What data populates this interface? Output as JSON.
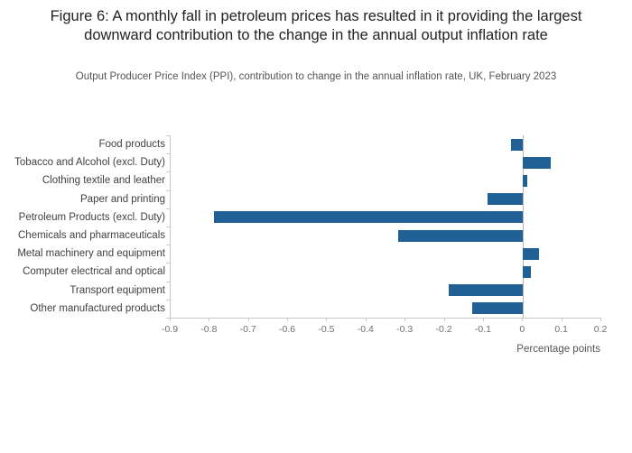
{
  "figure": {
    "title": "Figure 6: A monthly fall in petroleum prices has resulted in it providing the largest downward contribution to the change in the annual output inflation rate",
    "subtitle": "Output Producer Price Index (PPI), contribution to change in the annual inflation rate, UK, February 2023"
  },
  "chart_data": {
    "type": "bar",
    "orientation": "horizontal",
    "title": "Figure 6: A monthly fall in petroleum prices has resulted in it providing the largest downward contribution to the change in the annual output inflation rate",
    "subtitle": "Output Producer Price Index (PPI), contribution to change in the annual inflation rate, UK, February 2023",
    "categories": [
      "Food products",
      "Tobacco and Alcohol (excl. Duty)",
      "Clothing textile and leather",
      "Paper and printing",
      "Petroleum Products (excl. Duty)",
      "Chemicals and pharmaceuticals",
      "Metal machinery and equipment",
      "Computer electrical and optical",
      "Transport equipment",
      "Other manufactured products"
    ],
    "values": [
      -0.03,
      0.07,
      0.01,
      -0.09,
      -0.79,
      -0.32,
      0.04,
      0.02,
      -0.19,
      -0.13
    ],
    "xlabel": "Percentage points",
    "xlim": [
      -0.9,
      0.2
    ],
    "xticks": [
      -0.9,
      -0.8,
      -0.7,
      -0.6,
      -0.5,
      -0.4,
      -0.3,
      -0.2,
      -0.1,
      0,
      0.1,
      0.2
    ],
    "xtick_labels": [
      "-0.9",
      "-0.8",
      "-0.7",
      "-0.6",
      "-0.5",
      "-0.4",
      "-0.3",
      "-0.2",
      "-0.1",
      "0",
      "0.1",
      "0.2"
    ],
    "bar_color": "#20609:placeholder",
    "grid": false,
    "legend": "none"
  },
  "colors": {
    "bar": "#206095",
    "axis": "#c8c8c8",
    "zero_line": "#b3b3b3",
    "tick_text": "#707071",
    "label_text": "#414042"
  }
}
